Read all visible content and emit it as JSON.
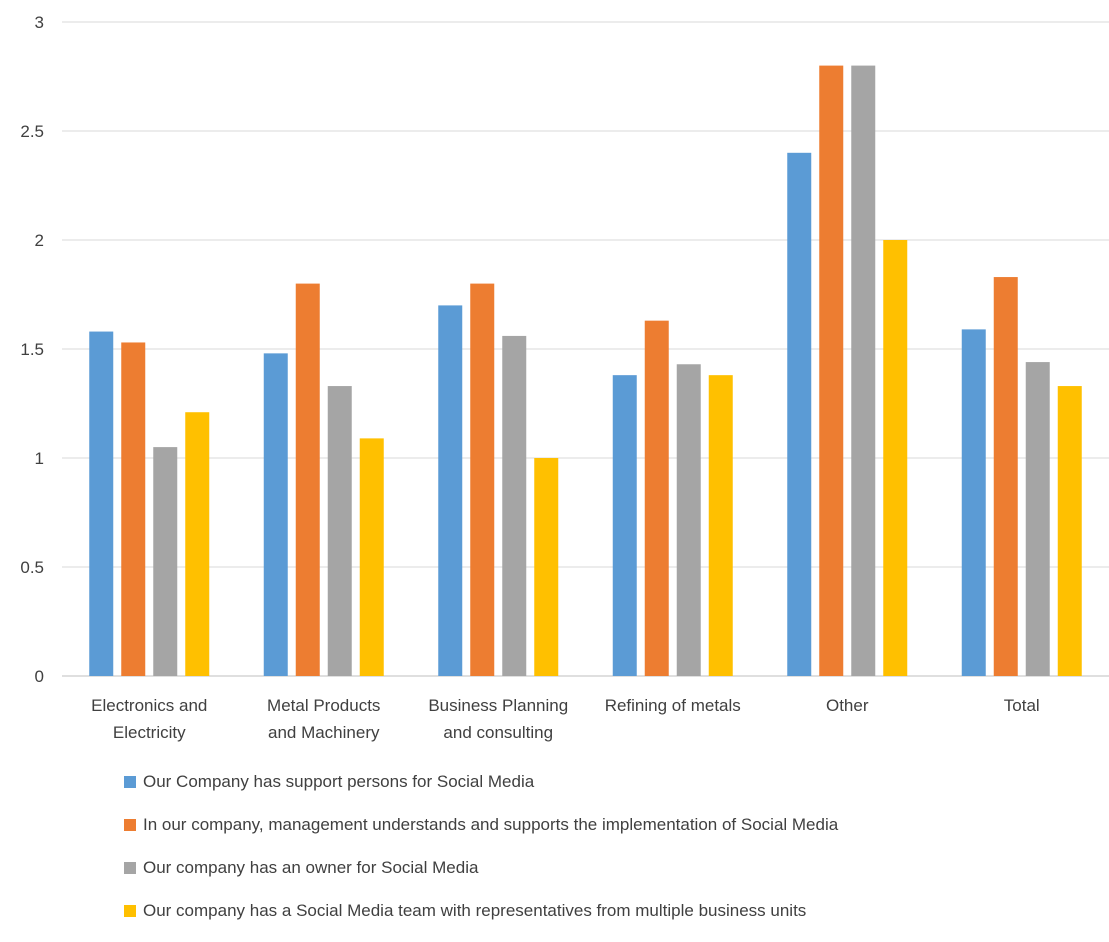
{
  "chart_data": {
    "type": "bar",
    "title": "",
    "xlabel": "",
    "ylabel": "",
    "ylim": [
      0,
      3
    ],
    "yticks": [
      "0",
      "0.5",
      "1",
      "1.5",
      "2",
      "2.5",
      "3"
    ],
    "grid": true,
    "legend_position": "bottom",
    "categories": [
      [
        "Electronics and",
        "Electricity"
      ],
      [
        "Metal Products",
        "and Machinery"
      ],
      [
        "Business Planning",
        "and consulting"
      ],
      [
        "Refining of metals"
      ],
      [
        "Other"
      ],
      [
        "Total"
      ]
    ],
    "series": [
      {
        "name": "Our Company has support persons for Social Media",
        "color": "#5b9bd5",
        "values": [
          1.58,
          1.48,
          1.7,
          1.38,
          2.4,
          1.59
        ]
      },
      {
        "name": "In our company, management understands and supports the implementation of Social Media",
        "color": "#ed7d31",
        "values": [
          1.53,
          1.8,
          1.8,
          1.63,
          2.8,
          1.83
        ]
      },
      {
        "name": "Our company has an owner for Social Media",
        "color": "#a5a5a5",
        "values": [
          1.05,
          1.33,
          1.56,
          1.43,
          2.8,
          1.44
        ]
      },
      {
        "name": "Our company has a Social Media team with representatives from multiple business units",
        "color": "#ffc000",
        "values": [
          1.21,
          1.09,
          1.0,
          1.38,
          2.0,
          1.33
        ]
      }
    ]
  }
}
